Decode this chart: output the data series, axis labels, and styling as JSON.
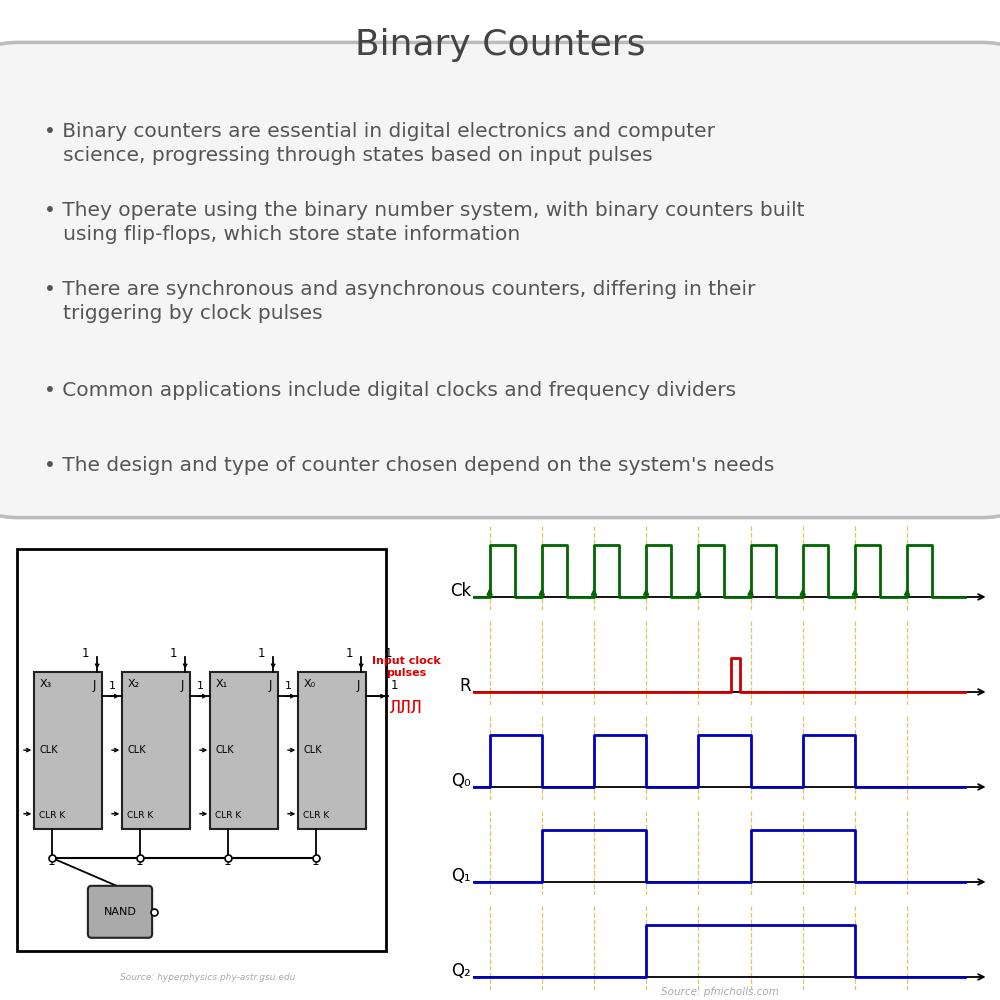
{
  "title": "Binary Counters",
  "title_color": "#444444",
  "title_fontsize": 26,
  "bullet_points": [
    "Binary counters are essential in digital electronics and computer\n   science, progressing through states based on input pulses",
    "They operate using the binary number system, with binary counters built\n   using flip-flops, which store state information",
    "There are synchronous and asynchronous counters, differing in their\n   triggering by clock pulses",
    "Common applications include digital clocks and frequency dividers",
    "The design and type of counter chosen depend on the system's needs"
  ],
  "bullet_color": "#555555",
  "bullet_fontsize": 14.5,
  "box_bg": "#f5f5f5",
  "box_edge": "#bbbbbb",
  "waveform_labels": [
    "Ck",
    "R",
    "Q₀",
    "Q₁",
    "Q₂"
  ],
  "ck_color": "#006600",
  "r_color": "#cc0000",
  "q_color": "#0000bb",
  "axis_color": "#000000",
  "dashed_color": "#ddbb44",
  "source_text_wf": "Source: pfnicholls.com",
  "source_text_circ": "Source: hyperphysics.phy-astr.gsu.edu",
  "input_clock_text": "Input clock\npulses",
  "input_clock_color": "#dd0000",
  "ff_fill": "#bbbbbb",
  "ff_edge": "#222222",
  "nand_fill": "#aaaaaa",
  "nand_edge": "#222222"
}
